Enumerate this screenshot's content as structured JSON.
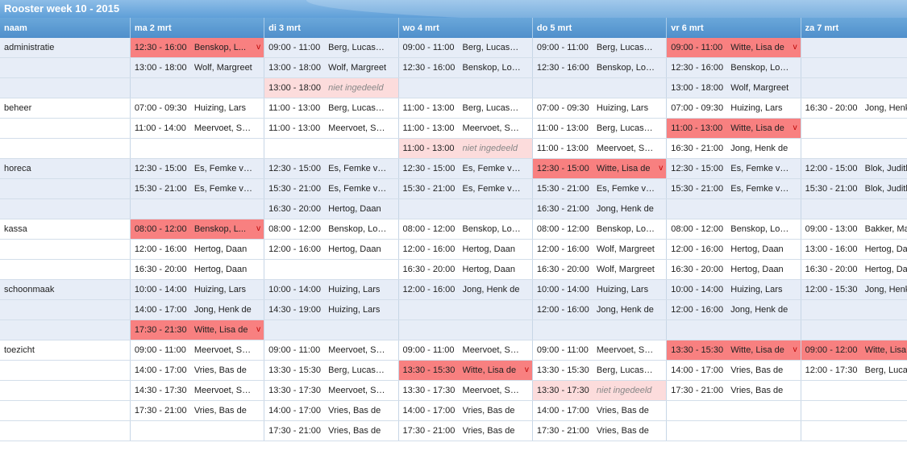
{
  "title": "Rooster week 10 - 2015",
  "header": {
    "name_col": "naam",
    "days": [
      "ma 2 mrt",
      "di 3 mrt",
      "wo 4 mrt",
      "do 5 mrt",
      "vr 6 mrt",
      "za 7 mrt"
    ]
  },
  "status_colors": {
    "conflict": "#f88080",
    "unassigned": "#fcdcdc",
    "header": "#5f9fd8"
  },
  "conflict_flag": "v",
  "rows": [
    {
      "name": "administratie",
      "alt": true,
      "cells": [
        {
          "time": "12:30 - 16:00",
          "person": "Benskop, L...",
          "status": "conflict"
        },
        {
          "time": "09:00 - 11:00",
          "person": "Berg, Lucas v..."
        },
        {
          "time": "09:00 - 11:00",
          "person": "Berg, Lucas v..."
        },
        {
          "time": "09:00 - 11:00",
          "person": "Berg, Lucas v..."
        },
        {
          "time": "09:00 - 11:00",
          "person": "Witte, Lisa de",
          "status": "conflict"
        },
        null
      ]
    },
    {
      "name": "",
      "alt": true,
      "cells": [
        {
          "time": "13:00 - 18:00",
          "person": "Wolf, Margreet"
        },
        {
          "time": "13:00 - 18:00",
          "person": "Wolf, Margreet"
        },
        {
          "time": "12:30 - 16:00",
          "person": "Benskop, Lotte"
        },
        {
          "time": "12:30 - 16:00",
          "person": "Benskop, Lotte"
        },
        {
          "time": "12:30 - 16:00",
          "person": "Benskop, Lotte"
        },
        null
      ]
    },
    {
      "name": "",
      "alt": true,
      "cells": [
        null,
        {
          "time": "13:00 - 18:00",
          "person": "niet ingedeeld",
          "status": "unassigned"
        },
        null,
        null,
        {
          "time": "13:00 - 18:00",
          "person": "Wolf, Margreet"
        },
        null
      ]
    },
    {
      "name": "beheer",
      "alt": false,
      "cells": [
        {
          "time": "07:00 - 09:30",
          "person": "Huizing, Lars"
        },
        {
          "time": "11:00 - 13:00",
          "person": "Berg, Lucas v..."
        },
        {
          "time": "11:00 - 13:00",
          "person": "Berg, Lucas v..."
        },
        {
          "time": "07:00 - 09:30",
          "person": "Huizing, Lars"
        },
        {
          "time": "07:00 - 09:30",
          "person": "Huizing, Lars"
        },
        {
          "time": "16:30 - 20:00",
          "person": "Jong, Henk de"
        }
      ]
    },
    {
      "name": "",
      "alt": false,
      "cells": [
        {
          "time": "11:00 - 14:00",
          "person": "Meervoet, Sa..."
        },
        {
          "time": "11:00 - 13:00",
          "person": "Meervoet, Sa..."
        },
        {
          "time": "11:00 - 13:00",
          "person": "Meervoet, Sa..."
        },
        {
          "time": "11:00 - 13:00",
          "person": "Berg, Lucas v..."
        },
        {
          "time": "11:00 - 13:00",
          "person": "Witte, Lisa de",
          "status": "conflict"
        },
        null
      ]
    },
    {
      "name": "",
      "alt": false,
      "cells": [
        null,
        null,
        {
          "time": "11:00 - 13:00",
          "person": "niet ingedeeld",
          "status": "unassigned"
        },
        {
          "time": "11:00 - 13:00",
          "person": "Meervoet, Sa..."
        },
        {
          "time": "16:30 - 21:00",
          "person": "Jong, Henk de"
        },
        null
      ]
    },
    {
      "name": "horeca",
      "alt": true,
      "cells": [
        {
          "time": "12:30 - 15:00",
          "person": "Es, Femke van"
        },
        {
          "time": "12:30 - 15:00",
          "person": "Es, Femke van"
        },
        {
          "time": "12:30 - 15:00",
          "person": "Es, Femke van"
        },
        {
          "time": "12:30 - 15:00",
          "person": "Witte, Lisa de",
          "status": "conflict"
        },
        {
          "time": "12:30 - 15:00",
          "person": "Es, Femke van"
        },
        {
          "time": "12:00 - 15:00",
          "person": "Blok, Judith"
        }
      ]
    },
    {
      "name": "",
      "alt": true,
      "cells": [
        {
          "time": "15:30 - 21:00",
          "person": "Es, Femke van"
        },
        {
          "time": "15:30 - 21:00",
          "person": "Es, Femke van"
        },
        {
          "time": "15:30 - 21:00",
          "person": "Es, Femke van"
        },
        {
          "time": "15:30 - 21:00",
          "person": "Es, Femke van"
        },
        {
          "time": "15:30 - 21:00",
          "person": "Es, Femke van"
        },
        {
          "time": "15:30 - 21:00",
          "person": "Blok, Judith"
        }
      ]
    },
    {
      "name": "",
      "alt": true,
      "cells": [
        null,
        {
          "time": "16:30 - 20:00",
          "person": "Hertog, Daan"
        },
        null,
        {
          "time": "16:30 - 21:00",
          "person": "Jong, Henk de"
        },
        null,
        null
      ]
    },
    {
      "name": "kassa",
      "alt": false,
      "cells": [
        {
          "time": "08:00 - 12:00",
          "person": "Benskop, L...",
          "status": "conflict"
        },
        {
          "time": "08:00 - 12:00",
          "person": "Benskop, Lotte"
        },
        {
          "time": "08:00 - 12:00",
          "person": "Benskop, Lotte"
        },
        {
          "time": "08:00 - 12:00",
          "person": "Benskop, Lotte"
        },
        {
          "time": "08:00 - 12:00",
          "person": "Benskop, Lotte"
        },
        {
          "time": "09:00 - 13:00",
          "person": "Bakker, Maa"
        }
      ]
    },
    {
      "name": "",
      "alt": false,
      "cells": [
        {
          "time": "12:00 - 16:00",
          "person": "Hertog, Daan"
        },
        {
          "time": "12:00 - 16:00",
          "person": "Hertog, Daan"
        },
        {
          "time": "12:00 - 16:00",
          "person": "Hertog, Daan"
        },
        {
          "time": "12:00 - 16:00",
          "person": "Wolf, Margreet"
        },
        {
          "time": "12:00 - 16:00",
          "person": "Hertog, Daan"
        },
        {
          "time": "13:00 - 16:00",
          "person": "Hertog, Daa"
        }
      ]
    },
    {
      "name": "",
      "alt": false,
      "cells": [
        {
          "time": "16:30 - 20:00",
          "person": "Hertog, Daan"
        },
        null,
        {
          "time": "16:30 - 20:00",
          "person": "Hertog, Daan"
        },
        {
          "time": "16:30 - 20:00",
          "person": "Wolf, Margreet"
        },
        {
          "time": "16:30 - 20:00",
          "person": "Hertog, Daan"
        },
        {
          "time": "16:30 - 20:00",
          "person": "Hertog, Daa"
        }
      ]
    },
    {
      "name": "schoonmaak",
      "alt": true,
      "cells": [
        {
          "time": "10:00 - 14:00",
          "person": "Huizing, Lars"
        },
        {
          "time": "10:00 - 14:00",
          "person": "Huizing, Lars"
        },
        {
          "time": "12:00 - 16:00",
          "person": "Jong, Henk de"
        },
        {
          "time": "10:00 - 14:00",
          "person": "Huizing, Lars"
        },
        {
          "time": "10:00 - 14:00",
          "person": "Huizing, Lars"
        },
        {
          "time": "12:00 - 15:30",
          "person": "Jong, Henk d"
        }
      ]
    },
    {
      "name": "",
      "alt": true,
      "cells": [
        {
          "time": "14:00 - 17:00",
          "person": "Jong, Henk de"
        },
        {
          "time": "14:30 - 19:00",
          "person": "Huizing, Lars"
        },
        null,
        {
          "time": "12:00 - 16:00",
          "person": "Jong, Henk de"
        },
        {
          "time": "12:00 - 16:00",
          "person": "Jong, Henk de"
        },
        null
      ]
    },
    {
      "name": "",
      "alt": true,
      "cells": [
        {
          "time": "17:30 - 21:30",
          "person": "Witte, Lisa de",
          "status": "conflict"
        },
        null,
        null,
        null,
        null,
        null
      ]
    },
    {
      "name": "toezicht",
      "alt": false,
      "cells": [
        {
          "time": "09:00 - 11:00",
          "person": "Meervoet, Sa..."
        },
        {
          "time": "09:00 - 11:00",
          "person": "Meervoet, Sa..."
        },
        {
          "time": "09:00 - 11:00",
          "person": "Meervoet, Sa..."
        },
        {
          "time": "09:00 - 11:00",
          "person": "Meervoet, Sa..."
        },
        {
          "time": "13:30 - 15:30",
          "person": "Witte, Lisa de",
          "status": "conflict"
        },
        {
          "time": "09:00 - 12:00",
          "person": "Witte, Lisa d",
          "status": "conflict"
        }
      ]
    },
    {
      "name": "",
      "alt": false,
      "cells": [
        {
          "time": "14:00 - 17:00",
          "person": "Vries, Bas de"
        },
        {
          "time": "13:30 - 15:30",
          "person": "Berg, Lucas v..."
        },
        {
          "time": "13:30 - 15:30",
          "person": "Witte, Lisa de",
          "status": "conflict"
        },
        {
          "time": "13:30 - 15:30",
          "person": "Berg, Lucas v..."
        },
        {
          "time": "14:00 - 17:00",
          "person": "Vries, Bas de"
        },
        {
          "time": "12:00 - 17:30",
          "person": "Berg, Lucas"
        }
      ]
    },
    {
      "name": "",
      "alt": false,
      "cells": [
        {
          "time": "14:30 - 17:30",
          "person": "Meervoet, Sa..."
        },
        {
          "time": "13:30 - 17:30",
          "person": "Meervoet, Sa..."
        },
        {
          "time": "13:30 - 17:30",
          "person": "Meervoet, Sa..."
        },
        {
          "time": "13:30 - 17:30",
          "person": "niet ingedeeld",
          "status": "unassigned"
        },
        {
          "time": "17:30 - 21:00",
          "person": "Vries, Bas de"
        },
        null
      ]
    },
    {
      "name": "",
      "alt": false,
      "cells": [
        {
          "time": "17:30 - 21:00",
          "person": "Vries, Bas de"
        },
        {
          "time": "14:00 - 17:00",
          "person": "Vries, Bas de"
        },
        {
          "time": "14:00 - 17:00",
          "person": "Vries, Bas de"
        },
        {
          "time": "14:00 - 17:00",
          "person": "Vries, Bas de"
        },
        null,
        null
      ]
    },
    {
      "name": "",
      "alt": false,
      "cells": [
        null,
        {
          "time": "17:30 - 21:00",
          "person": "Vries, Bas de"
        },
        {
          "time": "17:30 - 21:00",
          "person": "Vries, Bas de"
        },
        {
          "time": "17:30 - 21:00",
          "person": "Vries, Bas de"
        },
        null,
        null
      ]
    }
  ]
}
